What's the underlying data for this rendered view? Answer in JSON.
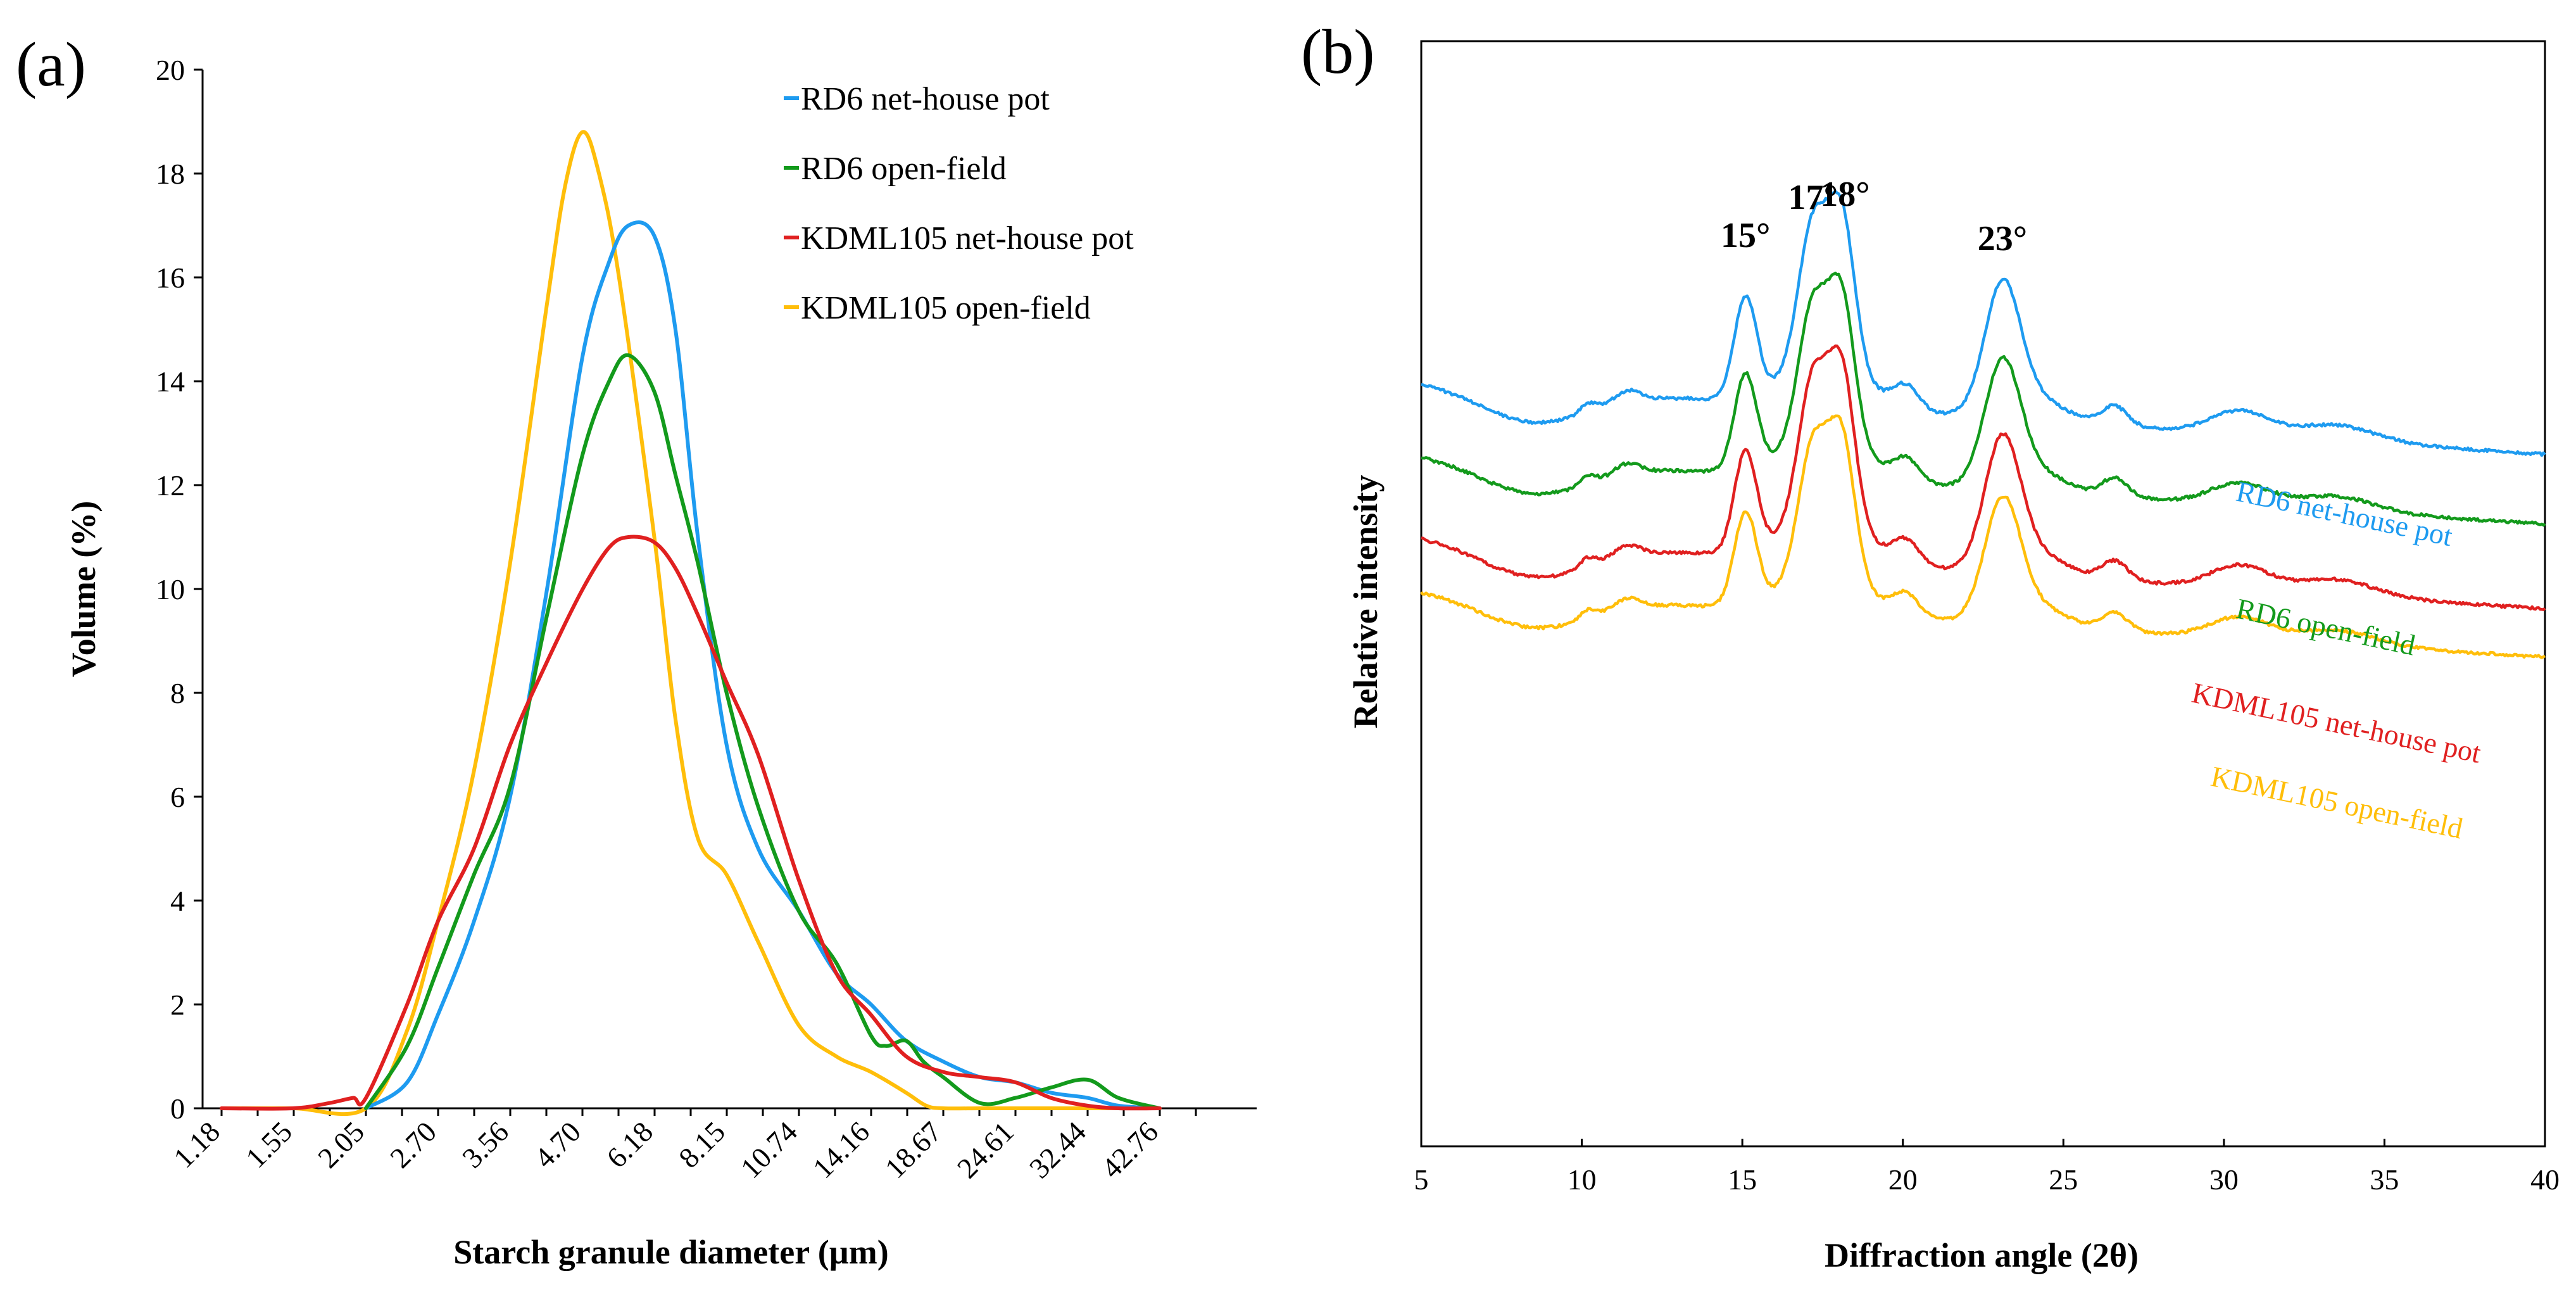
{
  "chart_data": [
    {
      "type": "line",
      "panel_label": "(a)",
      "xlabel": "Starch granule diameter (µm)",
      "ylabel": "Volume (%)",
      "ylim": [
        0,
        20
      ],
      "yticks": [
        "0",
        "2",
        "4",
        "6",
        "8",
        "10",
        "12",
        "14",
        "16",
        "18",
        "20"
      ],
      "x_tick_labels": [
        "1.18",
        "1.55",
        "2.05",
        "2.70",
        "3.56",
        "4.70",
        "6.18",
        "8.15",
        "10.74",
        "14.16",
        "18.67",
        "24.61",
        "32.44",
        "42.76"
      ],
      "legend_position": "top-right",
      "series": [
        {
          "name": "RD6 net-house pot",
          "color": "#1E9BF0",
          "x": [
            2.05,
            2.4,
            2.7,
            3.1,
            3.56,
            4.1,
            4.7,
            5.2,
            5.6,
            6.18,
            6.7,
            7.3,
            8.15,
            9.2,
            10.74,
            12.4,
            14.16,
            16.2,
            18.67,
            21.5,
            24.61,
            28.2,
            32.44,
            36.5,
            42.76
          ],
          "y": [
            0,
            0.5,
            1.8,
            3.6,
            6.0,
            10.0,
            14.5,
            16.3,
            17.0,
            16.8,
            15.0,
            11.0,
            7.0,
            5.0,
            3.8,
            2.6,
            2.0,
            1.3,
            0.9,
            0.6,
            0.5,
            0.3,
            0.2,
            0.05,
            0
          ]
        },
        {
          "name": "RD6 open-field",
          "color": "#139A1C",
          "x": [
            2.05,
            2.4,
            2.7,
            3.1,
            3.56,
            4.1,
            4.7,
            5.2,
            5.6,
            6.18,
            6.7,
            7.3,
            8.15,
            9.2,
            10.74,
            12.4,
            14.16,
            15.0,
            16.2,
            17.3,
            18.67,
            21.5,
            24.61,
            28.2,
            32.44,
            36.5,
            42.76
          ],
          "y": [
            0,
            1.2,
            2.7,
            4.5,
            6.2,
            9.5,
            12.6,
            14.0,
            14.5,
            13.8,
            12.2,
            10.5,
            8.0,
            5.8,
            3.8,
            2.8,
            1.4,
            1.2,
            1.3,
            0.9,
            0.6,
            0.1,
            0.2,
            0.4,
            0.55,
            0.2,
            0
          ]
        },
        {
          "name": "KDML105 net-house pot",
          "color": "#E02020",
          "x": [
            1.18,
            1.55,
            1.78,
            1.95,
            2.05,
            2.4,
            2.7,
            3.1,
            3.56,
            4.1,
            4.7,
            5.2,
            5.6,
            6.18,
            6.7,
            7.3,
            8.15,
            9.2,
            10.74,
            12.4,
            14.16,
            16.2,
            18.67,
            21.5,
            24.61,
            28.2,
            32.44,
            36.5,
            42.76
          ],
          "y": [
            0,
            0,
            0.1,
            0.2,
            0.2,
            2.0,
            3.6,
            5.0,
            7.0,
            8.6,
            10.0,
            10.8,
            11.0,
            10.9,
            10.4,
            9.5,
            8.2,
            6.8,
            4.4,
            2.6,
            1.8,
            1.0,
            0.7,
            0.6,
            0.5,
            0.2,
            0.05,
            0,
            0
          ]
        },
        {
          "name": "KDML105 open-field",
          "color": "#FFBE0A",
          "x": [
            1.18,
            1.55,
            2.05,
            2.4,
            2.7,
            3.1,
            3.56,
            4.1,
            4.4,
            4.7,
            5.0,
            5.4,
            6.18,
            6.7,
            7.3,
            8.15,
            9.2,
            10.74,
            12.4,
            14.16,
            16.2,
            17.5,
            18.67,
            21.5,
            24.61,
            28.2,
            32.44,
            36.5,
            42.76
          ],
          "y": [
            0,
            0,
            0,
            1.5,
            3.6,
            6.5,
            10.5,
            15.5,
            17.8,
            18.8,
            18.0,
            16.0,
            11.0,
            7.5,
            5.2,
            4.5,
            3.2,
            1.6,
            1.0,
            0.7,
            0.3,
            0.05,
            0,
            0,
            0,
            0,
            0,
            0,
            0
          ]
        }
      ]
    },
    {
      "type": "line",
      "panel_label": "(b)",
      "xlabel": "Diffraction angle (2θ)",
      "ylabel": "Relative intensity",
      "xlim": [
        5,
        40
      ],
      "xticks": [
        "5",
        "10",
        "15",
        "20",
        "25",
        "30",
        "35",
        "40"
      ],
      "peak_labels": [
        {
          "text": "15°",
          "angle": 15.1
        },
        {
          "text": "17°",
          "angle": 17.2
        },
        {
          "text": "18°",
          "angle": 18.2
        },
        {
          "text": "23°",
          "angle": 23.1
        }
      ],
      "series": [
        {
          "name": "RD6 net-house pot",
          "color": "#1E9BF0",
          "offset": 0.0
        },
        {
          "name": "RD6 open-field",
          "color": "#139A1C",
          "offset": 19.0
        },
        {
          "name": "KDML105 net-house pot",
          "color": "#E02020",
          "offset": 40.0
        },
        {
          "name": "KDML105 open-field",
          "color": "#FFBE0A",
          "offset": 54.0
        }
      ]
    }
  ]
}
